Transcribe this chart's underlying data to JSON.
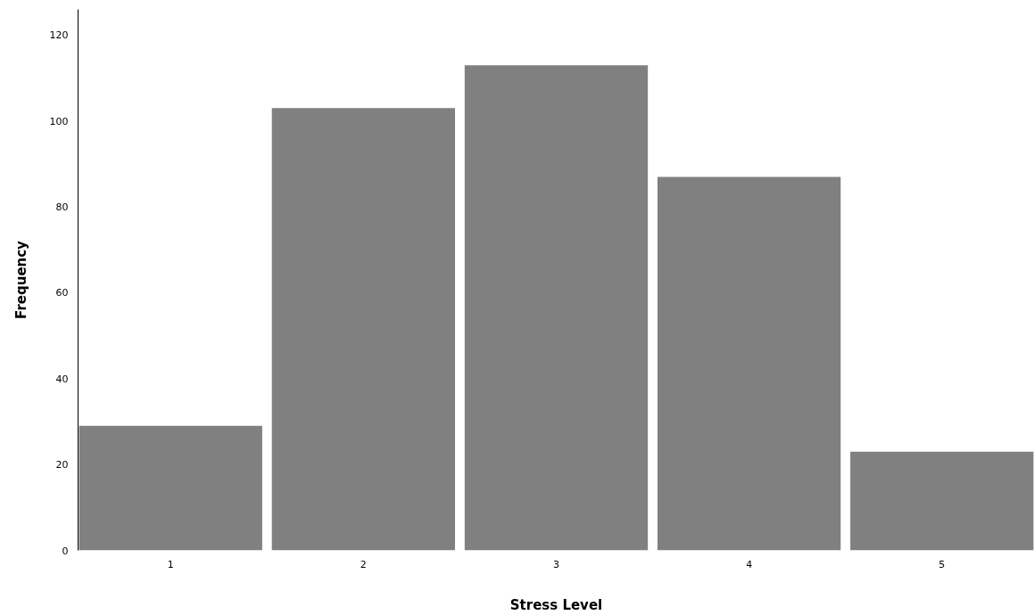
{
  "chart_data": {
    "type": "bar",
    "xlabel": "Stress Level",
    "ylabel": "Frequency",
    "x": [
      1,
      2,
      3,
      4,
      5
    ],
    "values": [
      29,
      103,
      113,
      87,
      23
    ],
    "color": "#808080",
    "xlim": [
      0.52,
      5.48
    ],
    "xticks": [
      1,
      2,
      3,
      4,
      5
    ],
    "ylim": [
      0,
      126
    ],
    "yticks": [
      0,
      20,
      40,
      60,
      80,
      100,
      120
    ],
    "grid": false
  }
}
